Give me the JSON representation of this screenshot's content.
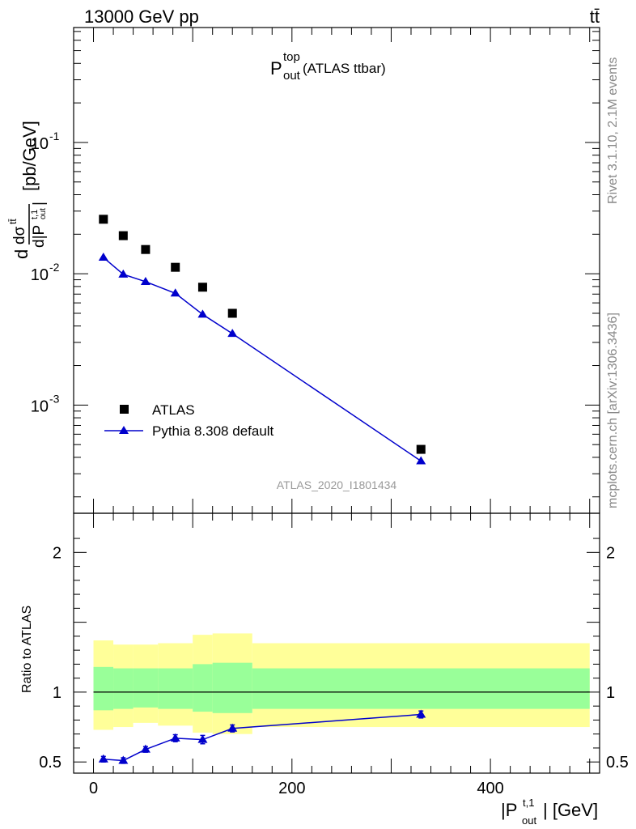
{
  "header": {
    "left": "13000 GeV pp",
    "right": "tt̄"
  },
  "side_labels": {
    "rivet": "Rivet 3.1.10,  2.1M events",
    "mcplots": "mcplots.cern.ch [arXiv:1306.3436]"
  },
  "chart_data": [
    {
      "type": "scatter",
      "panel": "main",
      "title_main": "P",
      "title_sup": "top",
      "title_sub": "out",
      "title_rest": " (ATLAS ttbar)",
      "ylabel": "d dσ^{tt̄} / d|P_{out}^{t,1}| [pb/GeV]",
      "yscale": "log",
      "ylim": [
        0.00015,
        0.75
      ],
      "xlim": [
        -20,
        510
      ],
      "y_tick_labels": [
        "10^-3",
        "10^-2",
        "10^-1"
      ],
      "watermark": "ATLAS_2020_I1801434",
      "legend_position": "middle-left",
      "series": [
        {
          "name": "ATLAS",
          "marker": "square",
          "color": "#000000",
          "x": [
            10,
            30,
            52.5,
            82.5,
            110,
            140,
            330
          ],
          "y": [
            0.026,
            0.0195,
            0.0153,
            0.0112,
            0.0079,
            0.005,
            0.00046
          ]
        },
        {
          "name": "Pythia 8.308 default",
          "marker": "triangle",
          "color": "#0000cc",
          "x": [
            10,
            30,
            52.5,
            82.5,
            110,
            140,
            330
          ],
          "y": [
            0.0133,
            0.0099,
            0.0087,
            0.0071,
            0.0049,
            0.0035,
            0.000375
          ]
        }
      ]
    },
    {
      "type": "line",
      "panel": "ratio",
      "ylabel": "Ratio to ATLAS",
      "xlabel": "|P_{out}^{t,1}| [GeV]",
      "ylim": [
        0.42,
        2.28
      ],
      "xlim": [
        -20,
        510
      ],
      "x_ticks": [
        0,
        200,
        400
      ],
      "y_ticks": [
        0.5,
        1,
        2
      ],
      "bands": {
        "edges": [
          0,
          20,
          40,
          65,
          100,
          120,
          160,
          500
        ],
        "yellow_low": [
          0.73,
          0.75,
          0.78,
          0.76,
          0.71,
          0.7,
          0.75
        ],
        "yellow_high": [
          1.37,
          1.34,
          1.34,
          1.35,
          1.41,
          1.42,
          1.35
        ],
        "green_low": [
          0.87,
          0.88,
          0.89,
          0.88,
          0.86,
          0.85,
          0.88
        ],
        "green_high": [
          1.18,
          1.17,
          1.17,
          1.17,
          1.2,
          1.21,
          1.17
        ]
      },
      "series": [
        {
          "name": "Pythia 8.308 default",
          "color": "#0000cc",
          "x": [
            10,
            30,
            52.5,
            82.5,
            110,
            140,
            330
          ],
          "y": [
            0.52,
            0.51,
            0.59,
            0.67,
            0.66,
            0.74,
            0.84
          ],
          "err": [
            0.02,
            0.02,
            0.02,
            0.025,
            0.03,
            0.025,
            0.025
          ]
        }
      ]
    }
  ]
}
